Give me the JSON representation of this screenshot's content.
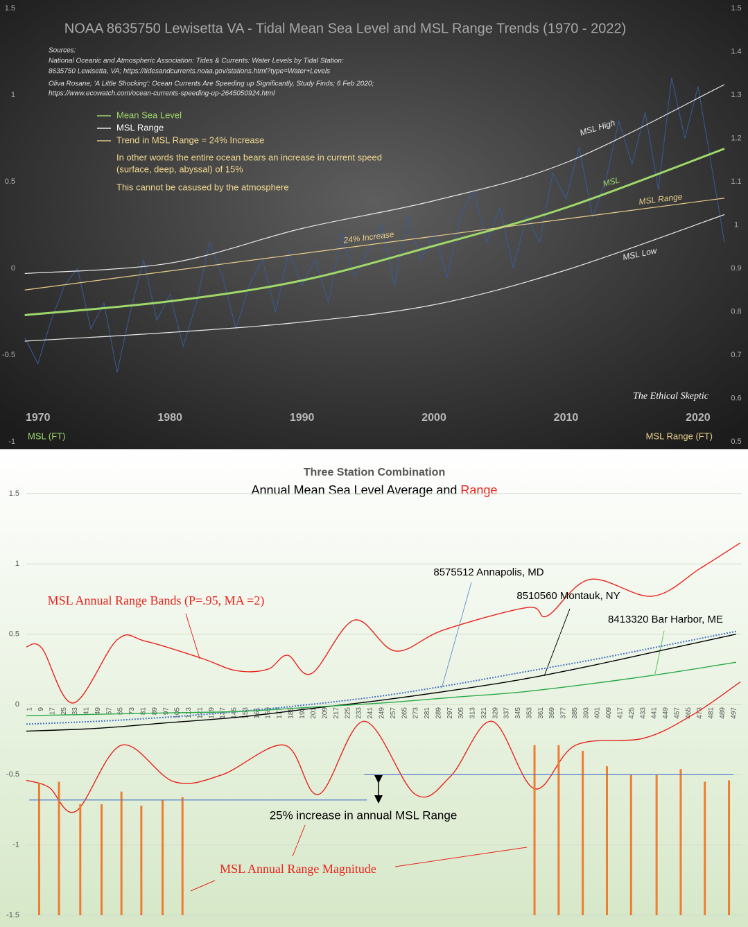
{
  "chart_data": [
    {
      "type": "line",
      "title": "NOAA 8635750 Lewisetta VA - Tidal Mean Sea Level and MSL Range Trends (1970 - 2022)",
      "sources": [
        "Sources:",
        "National Oceanic and Atmospheric Association: Tides & Currents: Water Levels by Tidal Station:",
        "8635750 Lewisetta, VA; https://tidesandcurrents.noaa.gov/stations.html?type=Water+Levels",
        "Oliva Rosane; 'A Little Shocking': Ocean Currents Are Speeding up Significantly, Study Finds; 6 Feb 2020;",
        "https://www.ecowatch.com/ocean-currents-speeding-up-2645050924.html"
      ],
      "legend": [
        {
          "name": "Mean Sea Level",
          "color": "#9fd86a"
        },
        {
          "name": "MSL Range",
          "color": "#e8e8e8"
        },
        {
          "name": "Trend in MSL Range = 24%  Increase",
          "color": "#e8cf8a"
        }
      ],
      "notes": [
        "In other words the entire ocean bears an increase in current speed",
        "(surface, deep, abyssal) of 15%",
        "This cannot be casused by the atmosphere"
      ],
      "annotations": [
        "24% Increase"
      ],
      "watermark": "The Ethical Skeptic",
      "ylabel": "MSL (FT)",
      "y2label": "MSL Range (FT)",
      "xlim": [
        1968.7,
        2022
      ],
      "xticks": [
        1970,
        1980,
        1990,
        2000,
        2010,
        2020
      ],
      "ylim": [
        -1,
        1.5
      ],
      "yticks": [
        -1,
        -0.5,
        0,
        0.5,
        1,
        1.5
      ],
      "y2lim": [
        0.5,
        1.5
      ],
      "y2ticks": [
        0.5,
        0.6,
        0.7,
        0.8,
        0.9,
        1,
        1.1,
        1.2,
        1.3,
        1.4,
        1.5
      ],
      "grid": false,
      "series": [
        {
          "color": "#3b5a9a",
          "x": [
            1969,
            1970,
            1971,
            1972,
            1973,
            1974,
            1975,
            1976,
            1977,
            1978,
            1979,
            1980,
            1981,
            1982,
            1983,
            1984,
            1985,
            1986,
            1987,
            1988,
            1989,
            1990,
            1991,
            1992,
            1993,
            1994,
            1995,
            1996,
            1997,
            1998,
            1999,
            2000,
            2001,
            2002,
            2003,
            2004,
            2005,
            2006,
            2007,
            2008,
            2009,
            2010,
            2011,
            2012,
            2013,
            2014,
            2015,
            2016,
            2017,
            2018,
            2019,
            2020,
            2021,
            2022
          ],
          "values": [
            -0.4,
            -0.55,
            -0.3,
            -0.1,
            0.0,
            -0.35,
            -0.2,
            -0.6,
            -0.25,
            0.05,
            -0.3,
            -0.15,
            -0.45,
            -0.2,
            0.15,
            -0.05,
            -0.35,
            -0.1,
            0.05,
            -0.25,
            0.1,
            -0.1,
            0.05,
            -0.2,
            0.2,
            -0.05,
            0.1,
            0.25,
            -0.1,
            0.3,
            0.05,
            0.2,
            -0.05,
            0.3,
            0.45,
            0.15,
            0.35,
            0.0,
            0.3,
            0.15,
            0.55,
            0.4,
            0.7,
            0.3,
            0.5,
            0.85,
            0.6,
            0.9,
            0.45,
            1.1,
            0.75,
            1.05,
            0.6,
            0.15
          ]
        },
        {
          "label": "MSL High",
          "color": "#e8e8e8",
          "smooth": true,
          "x": [
            1969,
            1980,
            1990,
            2000,
            2010,
            2022
          ],
          "values": [
            -0.03,
            0.03,
            0.23,
            0.39,
            0.61,
            1.06
          ]
        },
        {
          "label": "MSL",
          "color": "#9fd86a",
          "smooth": true,
          "x": [
            1969,
            1980,
            1990,
            2000,
            2010,
            2022
          ],
          "values": [
            -0.27,
            -0.19,
            -0.07,
            0.13,
            0.35,
            0.69
          ]
        },
        {
          "label": "MSL Low",
          "color": "#e8e8e8",
          "smooth": true,
          "x": [
            1969,
            1980,
            1990,
            2000,
            2010,
            2022
          ],
          "values": [
            -0.42,
            -0.37,
            -0.31,
            -0.21,
            -0.01,
            0.31
          ]
        },
        {
          "label": "MSL Range",
          "color": "#e8cf8a",
          "axis": "y2",
          "x": [
            1969,
            1980,
            1990,
            2000,
            2010,
            2022
          ],
          "values": [
            0.85,
            0.894,
            0.934,
            0.974,
            1.014,
            1.062
          ]
        }
      ]
    },
    {
      "type": "line",
      "title": "Three Station Combination",
      "subtitle": [
        "Annual Mean Sea Level Average and ",
        "Range"
      ],
      "annotations": [
        "MSL Annual Range Bands (P=.95, MA =2)",
        "25% increase in annual MSL Range",
        "MSL Annual Range Magnitude"
      ],
      "xlim": [
        0,
        504
      ],
      "xticks": [
        1,
        9,
        17,
        25,
        33,
        41,
        49,
        57,
        65,
        73,
        81,
        89,
        97,
        105,
        113,
        121,
        129,
        137,
        145,
        153,
        161,
        169,
        177,
        185,
        193,
        201,
        209,
        217,
        225,
        233,
        241,
        249,
        257,
        265,
        273,
        281,
        289,
        297,
        305,
        313,
        321,
        329,
        337,
        345,
        353,
        361,
        369,
        377,
        385,
        393,
        401,
        409,
        417,
        425,
        433,
        441,
        449,
        457,
        465,
        473,
        481,
        489,
        497
      ],
      "ylim": [
        -1.5,
        1.5
      ],
      "yticks": [
        -1.5,
        -1,
        -0.5,
        0,
        0.5,
        1,
        1.5
      ],
      "grid": true,
      "series": [
        {
          "name": "8575512 Annapolis, MD",
          "color": "#4a72c4",
          "dash": true,
          "smooth": true,
          "x": [
            0,
            50,
            100,
            150,
            200,
            250,
            300,
            350,
            400,
            450,
            500
          ],
          "values": [
            -0.14,
            -0.12,
            -0.09,
            -0.05,
            0.0,
            0.06,
            0.14,
            0.23,
            0.32,
            0.42,
            0.52
          ]
        },
        {
          "name": "8510560 Montauk, NY",
          "color": "#000000",
          "smooth": true,
          "x": [
            0,
            50,
            100,
            150,
            200,
            250,
            300,
            350,
            400,
            450,
            500
          ],
          "values": [
            -0.19,
            -0.17,
            -0.13,
            -0.09,
            -0.03,
            0.03,
            0.1,
            0.18,
            0.28,
            0.39,
            0.5
          ]
        },
        {
          "name": "8413320 Bar Harbor, ME",
          "color": "#2aa84a",
          "smooth": true,
          "x": [
            0,
            50,
            100,
            150,
            200,
            250,
            300,
            350,
            400,
            450,
            500
          ],
          "values": [
            -0.08,
            -0.07,
            -0.06,
            -0.05,
            -0.02,
            0.01,
            0.05,
            0.09,
            0.15,
            0.22,
            0.3
          ]
        },
        {
          "color": "#e8231c",
          "smooth": true,
          "x": [
            0,
            11,
            33,
            64,
            84,
            123,
            148,
            170,
            184,
            201,
            231,
            260,
            294,
            353,
            367,
            397,
            441,
            475,
            503
          ],
          "values": [
            0.41,
            0.4,
            0.01,
            0.46,
            0.45,
            0.33,
            0.24,
            0.25,
            0.35,
            0.22,
            0.6,
            0.38,
            0.53,
            0.69,
            0.63,
            0.89,
            0.77,
            0.97,
            1.15
          ]
        },
        {
          "color": "#e8231c",
          "smooth": true,
          "x": [
            0,
            16,
            35,
            67,
            104,
            138,
            182,
            206,
            238,
            274,
            299,
            328,
            358,
            387,
            435,
            470,
            503
          ],
          "values": [
            -0.54,
            -0.59,
            -0.76,
            -0.29,
            -0.55,
            -0.5,
            -0.29,
            -0.64,
            -0.12,
            -0.64,
            -0.51,
            -0.12,
            -0.6,
            -0.29,
            -0.24,
            -0.07,
            0.16
          ]
        },
        {
          "type": "bar",
          "color": "#ed7d31",
          "x": [
            9,
            23,
            38,
            53,
            67,
            81,
            96,
            110,
            358,
            375,
            392,
            409,
            426,
            444,
            461,
            478,
            495
          ],
          "values": [
            -0.56,
            -0.55,
            -0.71,
            -0.71,
            -0.62,
            -0.72,
            -0.68,
            -0.66,
            -0.29,
            -0.29,
            -0.33,
            -0.44,
            -0.5,
            -0.5,
            -0.46,
            -0.55,
            -0.54
          ]
        },
        {
          "color": "#4a72c4",
          "x": [
            2,
            240
          ],
          "values": [
            -0.68,
            -0.68
          ]
        },
        {
          "color": "#4a72c4",
          "x": [
            238,
            498
          ],
          "values": [
            -0.5,
            -0.5
          ]
        }
      ]
    }
  ]
}
